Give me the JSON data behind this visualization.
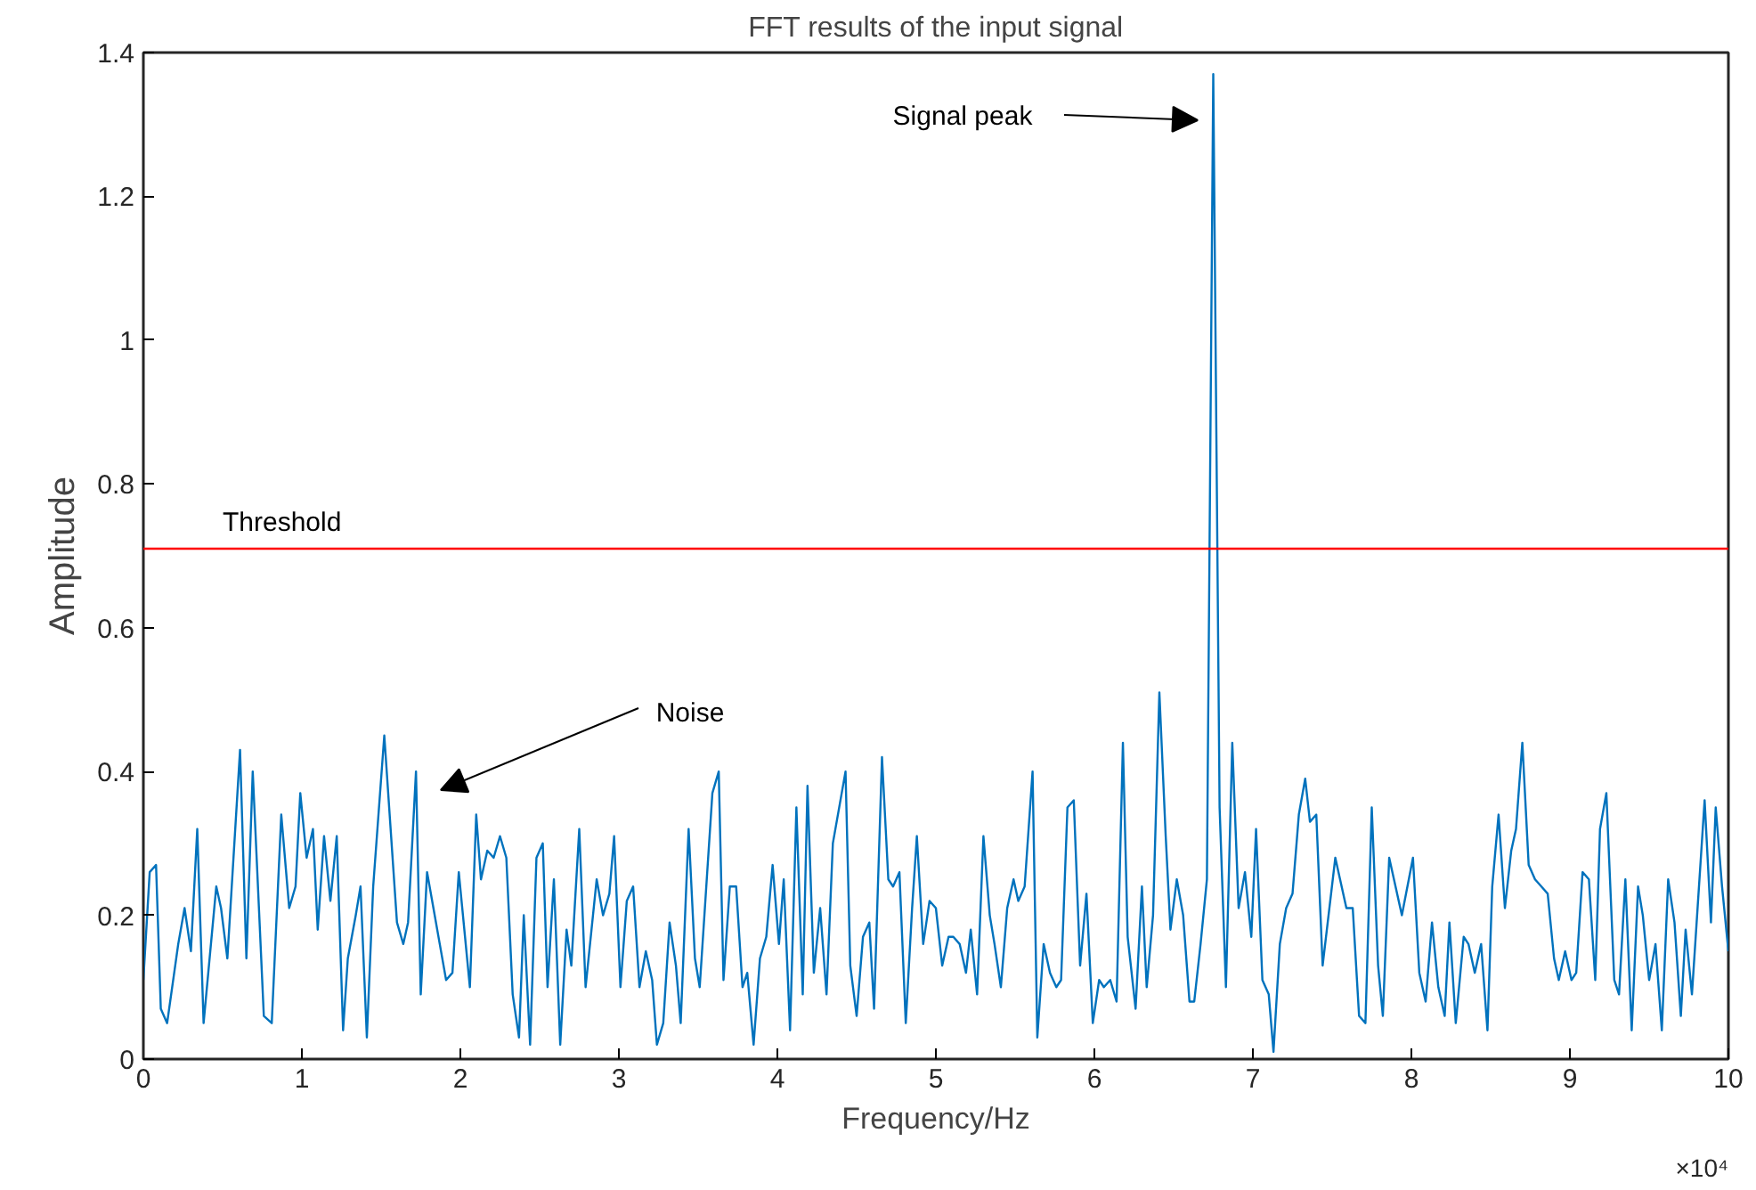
{
  "chart_data": {
    "type": "line",
    "title": "FFT results of the input signal",
    "xlabel": "Frequency/Hz",
    "ylabel": "Amplitude",
    "x": [
      0.0,
      0.04,
      0.08,
      0.11,
      0.15,
      0.22,
      0.26,
      0.3,
      0.34,
      0.38,
      0.46,
      0.49,
      0.53,
      0.61,
      0.65,
      0.69,
      0.76,
      0.81,
      0.87,
      0.92,
      0.96,
      0.99,
      1.03,
      1.07,
      1.1,
      1.14,
      1.18,
      1.22,
      1.26,
      1.29,
      1.34,
      1.37,
      1.41,
      1.45,
      1.52,
      1.6,
      1.64,
      1.67,
      1.72,
      1.75,
      1.79,
      1.83,
      1.87,
      1.91,
      1.95,
      1.99,
      2.06,
      2.1,
      2.13,
      2.17,
      2.21,
      2.25,
      2.29,
      2.33,
      2.37,
      2.4,
      2.44,
      2.48,
      2.52,
      2.55,
      2.59,
      2.63,
      2.67,
      2.7,
      2.75,
      2.79,
      2.86,
      2.9,
      2.94,
      2.97,
      3.01,
      3.05,
      3.09,
      3.13,
      3.17,
      3.21,
      3.24,
      3.28,
      3.32,
      3.36,
      3.39,
      3.44,
      3.48,
      3.51,
      3.59,
      3.63,
      3.66,
      3.7,
      3.74,
      3.78,
      3.81,
      3.85,
      3.89,
      3.93,
      3.97,
      4.01,
      4.04,
      4.08,
      4.12,
      4.16,
      4.19,
      4.23,
      4.27,
      4.31,
      4.35,
      4.43,
      4.46,
      4.5,
      4.54,
      4.58,
      4.61,
      4.66,
      4.7,
      4.73,
      4.77,
      4.81,
      4.85,
      4.88,
      4.92,
      4.96,
      5.0,
      5.04,
      5.08,
      5.11,
      5.15,
      5.19,
      5.22,
      5.26,
      5.3,
      5.34,
      5.37,
      5.41,
      5.45,
      5.49,
      5.52,
      5.56,
      5.61,
      5.64,
      5.68,
      5.72,
      5.76,
      5.79,
      5.83,
      5.87,
      5.91,
      5.95,
      5.99,
      6.03,
      6.06,
      6.1,
      6.14,
      6.18,
      6.21,
      6.26,
      6.3,
      6.33,
      6.37,
      6.41,
      6.45,
      6.48,
      6.52,
      6.56,
      6.6,
      6.63,
      6.67,
      6.71,
      6.75,
      6.79,
      6.83,
      6.87,
      6.91,
      6.95,
      6.99,
      7.02,
      7.06,
      7.1,
      7.13,
      7.17,
      7.21,
      7.25,
      7.29,
      7.33,
      7.36,
      7.4,
      7.44,
      7.52,
      7.55,
      7.59,
      7.63,
      7.67,
      7.71,
      7.75,
      7.79,
      7.82,
      7.86,
      7.94,
      8.01,
      8.05,
      8.09,
      8.13,
      8.17,
      8.21,
      8.24,
      8.28,
      8.33,
      8.36,
      8.4,
      8.44,
      8.48,
      8.51,
      8.55,
      8.59,
      8.63,
      8.66,
      8.7,
      8.74,
      8.78,
      8.82,
      8.86,
      8.9,
      8.93,
      8.97,
      9.01,
      9.04,
      9.08,
      9.12,
      9.16,
      9.19,
      9.23,
      9.28,
      9.31,
      9.35,
      9.39,
      9.43,
      9.46,
      9.5,
      9.54,
      9.58,
      9.62,
      9.66,
      9.7,
      9.73,
      9.77,
      9.85,
      9.89,
      9.92,
      9.96,
      10.0
    ],
    "series": [
      {
        "color": "#0072bd",
        "values": [
          0.11,
          0.26,
          0.27,
          0.07,
          0.05,
          0.16,
          0.21,
          0.15,
          0.32,
          0.05,
          0.24,
          0.21,
          0.14,
          0.43,
          0.14,
          0.4,
          0.06,
          0.05,
          0.34,
          0.21,
          0.24,
          0.37,
          0.28,
          0.32,
          0.18,
          0.31,
          0.22,
          0.31,
          0.04,
          0.14,
          0.2,
          0.24,
          0.03,
          0.24,
          0.45,
          0.19,
          0.16,
          0.19,
          0.4,
          0.09,
          0.26,
          0.21,
          0.16,
          0.11,
          0.12,
          0.26,
          0.1,
          0.34,
          0.25,
          0.29,
          0.28,
          0.31,
          0.28,
          0.09,
          0.03,
          0.2,
          0.02,
          0.28,
          0.3,
          0.1,
          0.25,
          0.02,
          0.18,
          0.13,
          0.32,
          0.1,
          0.25,
          0.2,
          0.23,
          0.31,
          0.1,
          0.22,
          0.24,
          0.1,
          0.15,
          0.11,
          0.02,
          0.05,
          0.19,
          0.13,
          0.05,
          0.32,
          0.14,
          0.1,
          0.37,
          0.4,
          0.11,
          0.24,
          0.24,
          0.1,
          0.12,
          0.02,
          0.14,
          0.17,
          0.27,
          0.16,
          0.25,
          0.04,
          0.35,
          0.09,
          0.38,
          0.12,
          0.21,
          0.09,
          0.3,
          0.4,
          0.13,
          0.06,
          0.17,
          0.19,
          0.07,
          0.42,
          0.25,
          0.24,
          0.26,
          0.05,
          0.21,
          0.31,
          0.16,
          0.22,
          0.21,
          0.13,
          0.17,
          0.17,
          0.16,
          0.12,
          0.18,
          0.09,
          0.31,
          0.2,
          0.16,
          0.1,
          0.21,
          0.25,
          0.22,
          0.24,
          0.4,
          0.03,
          0.16,
          0.12,
          0.1,
          0.11,
          0.35,
          0.36,
          0.13,
          0.23,
          0.05,
          0.11,
          0.1,
          0.11,
          0.08,
          0.44,
          0.17,
          0.07,
          0.24,
          0.1,
          0.2,
          0.51,
          0.31,
          0.18,
          0.25,
          0.2,
          0.08,
          0.08,
          0.16,
          0.25,
          1.37,
          0.35,
          0.1,
          0.44,
          0.21,
          0.26,
          0.17,
          0.32,
          0.11,
          0.09,
          0.01,
          0.16,
          0.21,
          0.23,
          0.34,
          0.39,
          0.33,
          0.34,
          0.13,
          0.28,
          0.25,
          0.21,
          0.21,
          0.06,
          0.05,
          0.35,
          0.13,
          0.06,
          0.28,
          0.2,
          0.28,
          0.12,
          0.08,
          0.19,
          0.1,
          0.06,
          0.19,
          0.05,
          0.17,
          0.16,
          0.12,
          0.16,
          0.04,
          0.24,
          0.34,
          0.21,
          0.29,
          0.32,
          0.44,
          0.27,
          0.25,
          0.24,
          0.23,
          0.14,
          0.11,
          0.15,
          0.11,
          0.12,
          0.26,
          0.25,
          0.11,
          0.32,
          0.37,
          0.11,
          0.09,
          0.25,
          0.04,
          0.24,
          0.2,
          0.11,
          0.16,
          0.04,
          0.25,
          0.19,
          0.06,
          0.18,
          0.09,
          0.36,
          0.19,
          0.35,
          0.24,
          0.15
        ]
      }
    ],
    "xlim": [
      0,
      10
    ],
    "ylim": [
      0,
      1.4
    ],
    "xticks": [
      0,
      1,
      2,
      3,
      4,
      5,
      6,
      7,
      8,
      9,
      10
    ],
    "yticks": [
      0,
      0.2,
      0.4,
      0.6,
      0.8,
      1,
      1.2,
      1.4
    ],
    "ref_lines": [
      {
        "axis": "y",
        "value": 0.71,
        "label": "Threshold",
        "color": "#ff0000"
      }
    ],
    "annotations": [
      "Signal peak",
      "Noise",
      "×10⁴"
    ],
    "grid": false
  }
}
